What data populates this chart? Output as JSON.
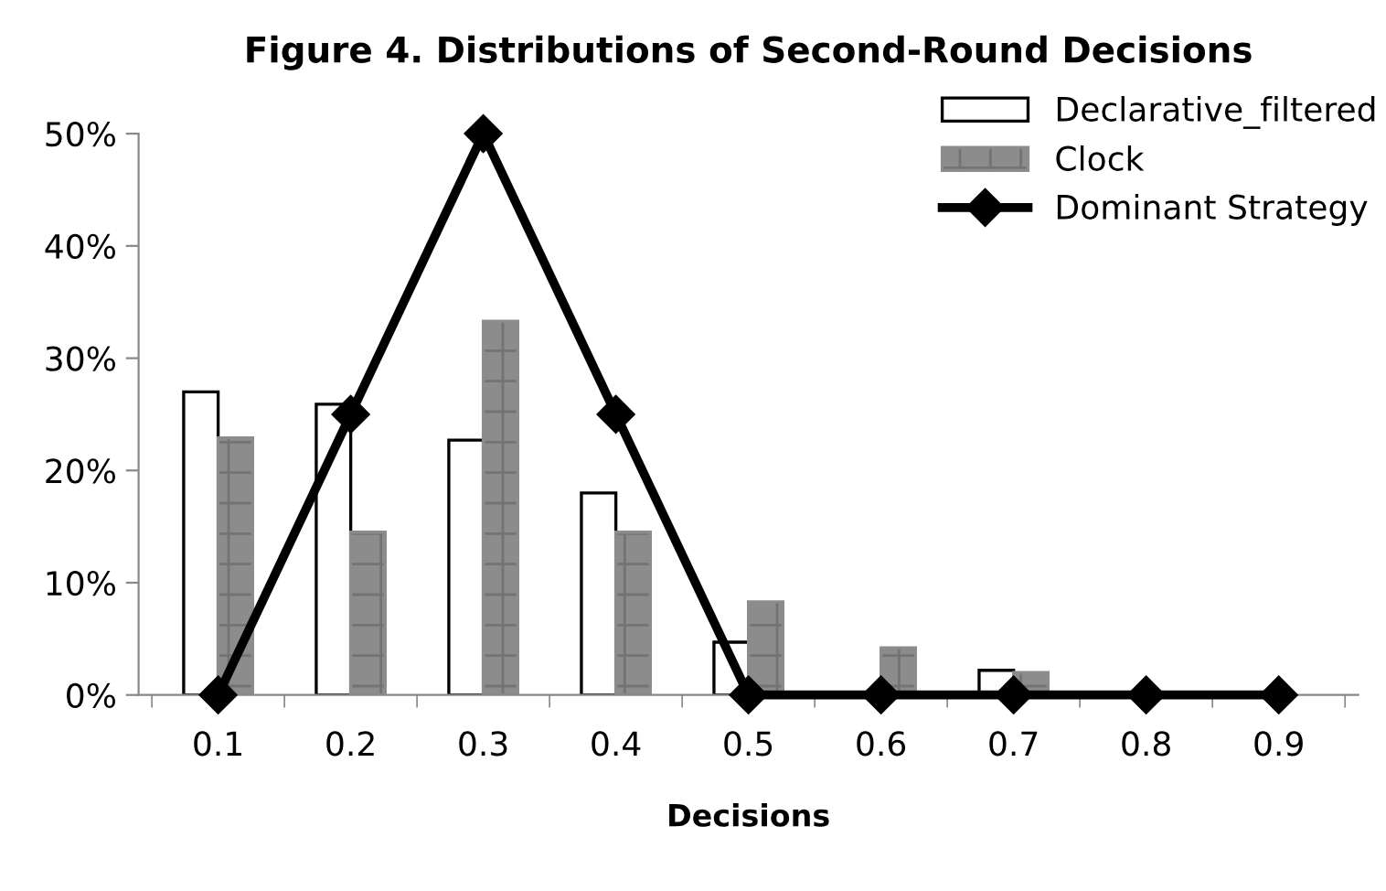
{
  "chart_data": {
    "type": "bar",
    "title": "Figure 4. Distributions of Second-Round Decisions",
    "xlabel": "Decisions",
    "categories": [
      "0.1",
      "0.2",
      "0.3",
      "0.4",
      "0.5",
      "0.6",
      "0.7",
      "0.8",
      "0.9"
    ],
    "series": [
      {
        "name": "Declarative_filtered",
        "color": "#ffffff",
        "values": [
          27.0,
          25.9,
          22.7,
          18.0,
          4.7,
          0,
          2.2,
          0,
          0
        ]
      },
      {
        "name": "Clock",
        "color": "#8c8c8c",
        "values": [
          22.9,
          14.5,
          33.3,
          14.5,
          8.3,
          4.2,
          2.0,
          0,
          0
        ]
      },
      {
        "name": "Dominant Strategy",
        "type": "line",
        "color": "#000000",
        "marker": "diamond",
        "line_style": "solid",
        "values": [
          0,
          25,
          50,
          25,
          0,
          0,
          0,
          0,
          0
        ]
      }
    ],
    "ylim": [
      0,
      50
    ],
    "yticks": [
      {
        "value": 0,
        "label": "0%"
      },
      {
        "value": 10,
        "label": "10%"
      },
      {
        "value": 20,
        "label": "20%"
      },
      {
        "value": 30,
        "label": "30%"
      },
      {
        "value": 40,
        "label": "40%"
      },
      {
        "value": 50,
        "label": "50%"
      }
    ],
    "grid": false,
    "legend": "top right"
  }
}
